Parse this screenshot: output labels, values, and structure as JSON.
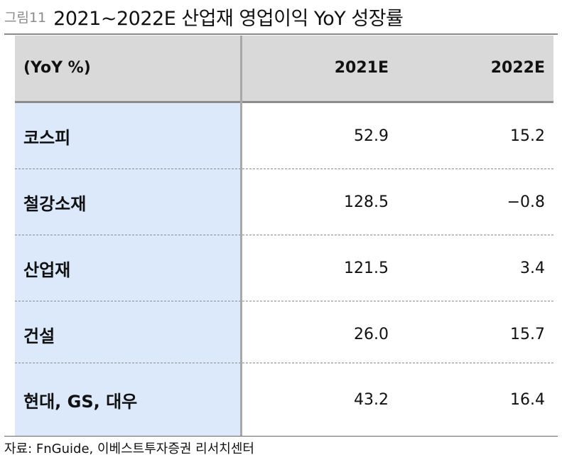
{
  "figure": {
    "number": "그림11",
    "title": "2021~2022E 산업재 영업이익 YoY 성장률"
  },
  "table": {
    "header": {
      "label": "(YoY %)",
      "columns": [
        "2021E",
        "2022E"
      ]
    },
    "rows": [
      {
        "label": "코스피",
        "values": [
          "52.9",
          "15.2"
        ]
      },
      {
        "label": "철강소재",
        "values": [
          "128.5",
          "−0.8"
        ]
      },
      {
        "label": "산업재",
        "values": [
          "121.5",
          "3.4"
        ]
      },
      {
        "label": "건설",
        "values": [
          "26.0",
          "15.7"
        ]
      },
      {
        "label": "현대, GS, 대우",
        "values": [
          "43.2",
          "16.4"
        ]
      }
    ]
  },
  "source": "자료: FnGuide, 이베스트투자증권 리서치센터",
  "colors": {
    "header_bg": "#d9d9d9",
    "label_band_bg": "#dce9fb",
    "figure_number": "#8a8a8a"
  }
}
